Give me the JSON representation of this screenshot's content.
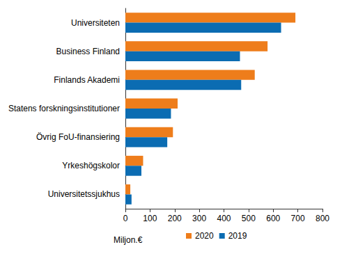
{
  "chart_data": {
    "type": "bar",
    "orientation": "horizontal",
    "x_label": "Miljon.€",
    "categories": [
      "Universiteten",
      "Business Finland",
      "Finlands Akademi",
      "Statens forskningsinstitutioner",
      "Övrig FoU-finansiering",
      "Yrkeshögskolor",
      "Universitetssjukhus"
    ],
    "series": [
      {
        "name": "2020",
        "color": "#ee7d1b",
        "values": [
          690,
          577,
          525,
          212,
          193,
          72,
          20
        ]
      },
      {
        "name": "2019",
        "color": "#0b6cb2",
        "values": [
          632,
          465,
          470,
          185,
          170,
          65,
          25
        ]
      }
    ],
    "xlim": [
      0,
      800
    ],
    "xticks": [
      0,
      100,
      200,
      300,
      400,
      500,
      600,
      700,
      800
    ],
    "grid": false,
    "legend": "bottom",
    "data_labels": false
  }
}
